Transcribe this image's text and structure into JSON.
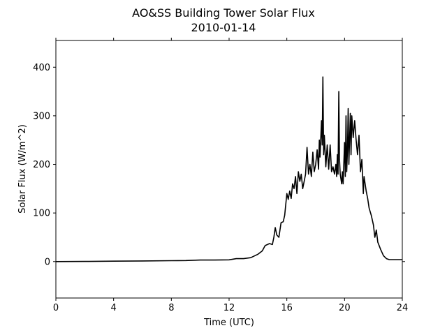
{
  "chart_data": {
    "type": "line",
    "title": "AO&SS Building Tower Solar Flux",
    "subtitle": "2010-01-14",
    "xlabel": "Time (UTC)",
    "ylabel": "Solar Flux (W/m^2)",
    "xlim": [
      0,
      24
    ],
    "ylim": [
      -75,
      455
    ],
    "xticks": [
      0,
      4,
      8,
      12,
      16,
      20,
      24
    ],
    "yticks": [
      0,
      100,
      200,
      300,
      400
    ],
    "grid": false,
    "legend": "none",
    "series": [
      {
        "color": "#000000",
        "points": [
          [
            0,
            0
          ],
          [
            2,
            0.3
          ],
          [
            4,
            0.8
          ],
          [
            6,
            1.3
          ],
          [
            8,
            1.8
          ],
          [
            9,
            2.2
          ],
          [
            10,
            3.2
          ],
          [
            11,
            3.2
          ],
          [
            12,
            3.5
          ],
          [
            12.5,
            6
          ],
          [
            13,
            6
          ],
          [
            13.5,
            8
          ],
          [
            14,
            15
          ],
          [
            14.3,
            22
          ],
          [
            14.5,
            33
          ],
          [
            14.8,
            37
          ],
          [
            15,
            35
          ],
          [
            15.1,
            50
          ],
          [
            15.2,
            70
          ],
          [
            15.3,
            55
          ],
          [
            15.45,
            50
          ],
          [
            15.6,
            80
          ],
          [
            15.75,
            82
          ],
          [
            15.85,
            95
          ],
          [
            16,
            140
          ],
          [
            16.1,
            128
          ],
          [
            16.2,
            145
          ],
          [
            16.3,
            130
          ],
          [
            16.4,
            160
          ],
          [
            16.5,
            150
          ],
          [
            16.6,
            175
          ],
          [
            16.7,
            140
          ],
          [
            16.8,
            185
          ],
          [
            16.9,
            165
          ],
          [
            17,
            180
          ],
          [
            17.1,
            150
          ],
          [
            17.2,
            165
          ],
          [
            17.3,
            180
          ],
          [
            17.4,
            235
          ],
          [
            17.5,
            180
          ],
          [
            17.6,
            200
          ],
          [
            17.7,
            175
          ],
          [
            17.8,
            225
          ],
          [
            17.9,
            185
          ],
          [
            18,
            200
          ],
          [
            18.1,
            230
          ],
          [
            18.2,
            190
          ],
          [
            18.25,
            250
          ],
          [
            18.3,
            215
          ],
          [
            18.4,
            290
          ],
          [
            18.45,
            240
          ],
          [
            18.5,
            380
          ],
          [
            18.55,
            220
          ],
          [
            18.6,
            260
          ],
          [
            18.7,
            195
          ],
          [
            18.8,
            240
          ],
          [
            18.9,
            190
          ],
          [
            19,
            240
          ],
          [
            19.1,
            185
          ],
          [
            19.2,
            195
          ],
          [
            19.3,
            180
          ],
          [
            19.4,
            200
          ],
          [
            19.45,
            175
          ],
          [
            19.5,
            220
          ],
          [
            19.55,
            180
          ],
          [
            19.6,
            350
          ],
          [
            19.65,
            210
          ],
          [
            19.7,
            180
          ],
          [
            19.8,
            160
          ],
          [
            19.85,
            185
          ],
          [
            19.9,
            160
          ],
          [
            20,
            245
          ],
          [
            20.05,
            175
          ],
          [
            20.1,
            300
          ],
          [
            20.15,
            185
          ],
          [
            20.2,
            230
          ],
          [
            20.25,
            315
          ],
          [
            20.3,
            200
          ],
          [
            20.4,
            305
          ],
          [
            20.45,
            220
          ],
          [
            20.5,
            300
          ],
          [
            20.6,
            255
          ],
          [
            20.7,
            290
          ],
          [
            20.8,
            250
          ],
          [
            20.9,
            220
          ],
          [
            21,
            260
          ],
          [
            21.1,
            185
          ],
          [
            21.2,
            210
          ],
          [
            21.3,
            140
          ],
          [
            21.35,
            175
          ],
          [
            21.5,
            145
          ],
          [
            21.6,
            130
          ],
          [
            21.7,
            110
          ],
          [
            21.85,
            95
          ],
          [
            22,
            75
          ],
          [
            22.1,
            50
          ],
          [
            22.2,
            65
          ],
          [
            22.3,
            40
          ],
          [
            22.5,
            25
          ],
          [
            22.7,
            12
          ],
          [
            22.9,
            6
          ],
          [
            23.1,
            4
          ],
          [
            24,
            4
          ]
        ]
      }
    ]
  }
}
